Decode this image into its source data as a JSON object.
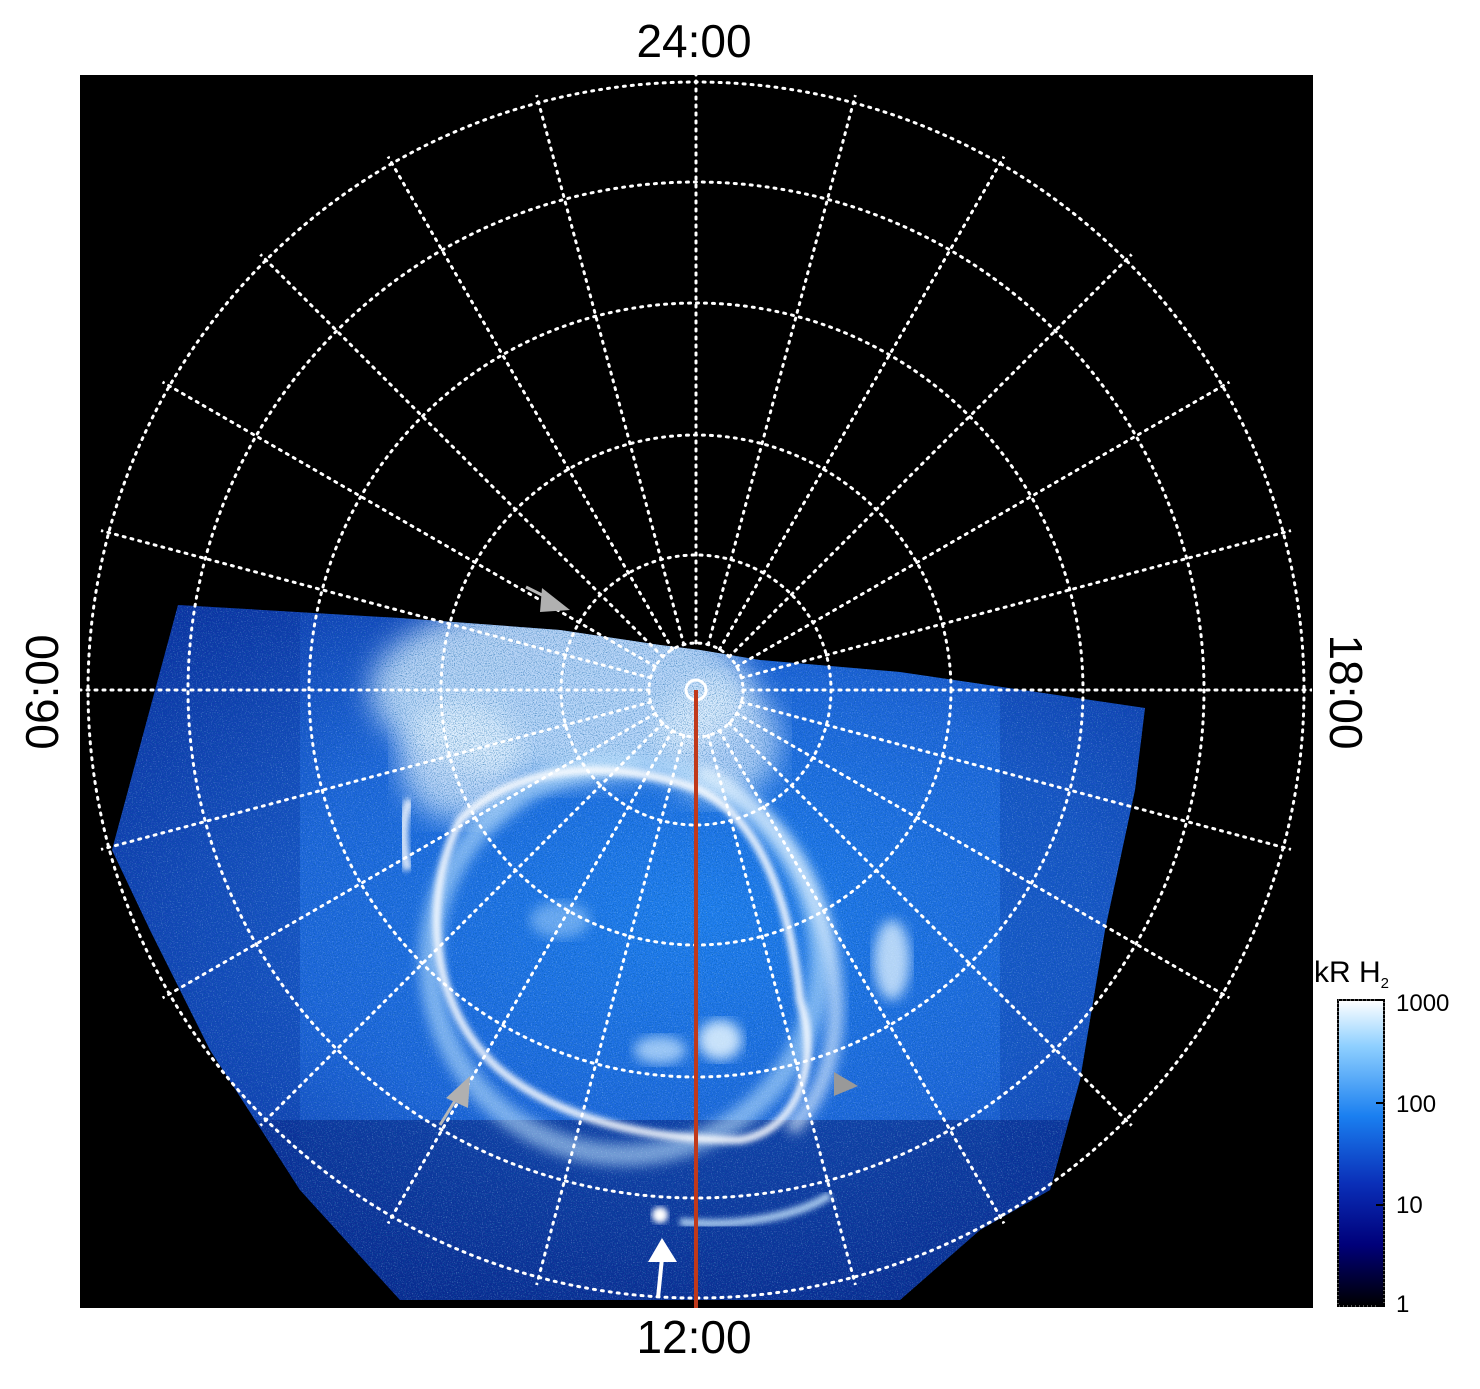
{
  "lt_labels": {
    "top": "24:00",
    "bottom": "12:00",
    "left": "06:00",
    "right": "18:00"
  },
  "colorbar": {
    "title_main": "kR H",
    "title_sub": "2",
    "ticks": [
      "1000",
      "100",
      "10",
      "1"
    ],
    "scale": "log",
    "range": [
      1,
      1000
    ],
    "colors": [
      "#000000",
      "#00007a",
      "#0a2fb8",
      "#1a7ff0",
      "#8fd0ff",
      "#ffffff"
    ]
  },
  "colors": {
    "background": "#000000",
    "grid": "#ffffff",
    "meridian_line": "#c0391b",
    "arrow_white": "#ffffff",
    "arrow_gray": "#a8a8a8"
  }
}
